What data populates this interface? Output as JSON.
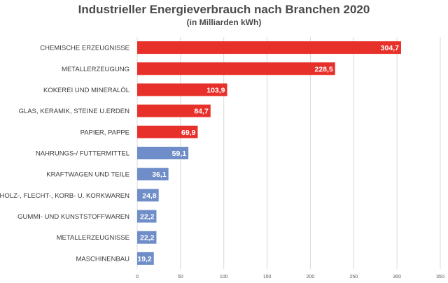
{
  "chart_data": {
    "type": "bar",
    "orientation": "horizontal",
    "title": "Industrieller Energieverbrauch nach Branchen 2020",
    "subtitle": "(in Milliarden kWh)",
    "xlabel": "",
    "ylabel": "",
    "xlim": [
      0,
      350
    ],
    "ticks": [
      0,
      50,
      100,
      150,
      200,
      250,
      300,
      350
    ],
    "grid": true,
    "categories": [
      "CHEMISCHE ERZEUGNISSE",
      "METALLERZEUGUNG",
      "KOKEREI UND MINERALÖL",
      "GLAS, KERAMIK, STEINE U.ERDEN",
      "PAPIER, PAPPE",
      "NAHRUNGS-/ FUTTERMITTEL",
      "KRAFTWAGEN UND TEILE",
      "HOLZ-, FLECHT-, KORB- U. KORKWAREN",
      "GUMMI- UND KUNSTSTOFFWAREN",
      "METALLERZEUGNISSE",
      "MASCHINENBAU"
    ],
    "values": [
      304.7,
      228.5,
      103.9,
      84.7,
      69.9,
      59.1,
      36.1,
      24.8,
      22.2,
      22.2,
      19.2
    ],
    "value_labels": [
      "304,7",
      "228,5",
      "103,9",
      "84,7",
      "69,9",
      "59,1",
      "36,1",
      "24,8",
      "22,2",
      "22,2",
      "19,2"
    ],
    "colors": [
      "#e8302a",
      "#e8302a",
      "#e8302a",
      "#e8302a",
      "#e8302a",
      "#6f8dc9",
      "#6f8dc9",
      "#6f8dc9",
      "#6f8dc9",
      "#6f8dc9",
      "#6f8dc9"
    ]
  }
}
